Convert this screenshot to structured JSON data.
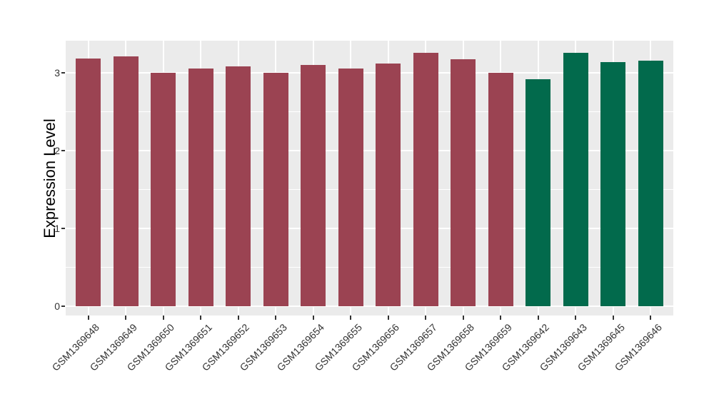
{
  "chart_data": {
    "type": "bar",
    "title": "",
    "xlabel": "",
    "ylabel": "Expression Level",
    "ylim": [
      0,
      3.42
    ],
    "yticks": [
      0,
      1,
      2,
      3
    ],
    "minor_yticks": [
      0.5,
      1.5,
      2.5
    ],
    "grid": true,
    "legend": "none",
    "categories": [
      "GSM1369648",
      "GSM1369649",
      "GSM1369650",
      "GSM1369651",
      "GSM1369652",
      "GSM1369653",
      "GSM1369654",
      "GSM1369655",
      "GSM1369656",
      "GSM1369657",
      "GSM1369658",
      "GSM1369659",
      "GSM1369642",
      "GSM1369643",
      "GSM1369645",
      "GSM1369646"
    ],
    "values": [
      3.19,
      3.21,
      3.0,
      3.06,
      3.09,
      3.0,
      3.1,
      3.06,
      3.12,
      3.26,
      3.18,
      3.0,
      2.92,
      3.26,
      3.14,
      3.16
    ],
    "bar_colors": [
      "#9B4352",
      "#9B4352",
      "#9B4352",
      "#9B4352",
      "#9B4352",
      "#9B4352",
      "#9B4352",
      "#9B4352",
      "#9B4352",
      "#9B4352",
      "#9B4352",
      "#9B4352",
      "#026A4C",
      "#026A4C",
      "#026A4C",
      "#026A4C"
    ],
    "palette": {
      "group1_color": "#9B4352",
      "group2_color": "#026A4C",
      "panel_background": "#EBEBEB",
      "gridline_color": "#FFFFFF",
      "axis_text_color": "#333333"
    }
  }
}
